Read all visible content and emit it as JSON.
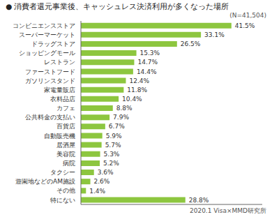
{
  "chart_data": {
    "type": "bar",
    "orientation": "horizontal",
    "title": "● 消費者還元事業後、キャッシュレス決済利用が多くなった場所",
    "annotations": [
      "(N=41,504)",
      "2020.1 Visa×MMD研究所"
    ],
    "categories": [
      "コンビニエンスストア",
      "スーパーマーケット",
      "ドラッグストア",
      "ショッピングモール",
      "レストラン",
      "ファーストフード",
      "ガソリンスタンド",
      "家電量販店",
      "衣料品店",
      "カフェ",
      "公共料金の支払い",
      "百貨店",
      "自動販売機",
      "居酒屋",
      "美容院",
      "病院",
      "タクシー",
      "遊園地などのAM施設",
      "その他",
      "特にない"
    ],
    "values": [
      41.5,
      33.1,
      26.5,
      15.3,
      14.7,
      14.4,
      12.4,
      11.8,
      10.4,
      8.8,
      7.9,
      6.7,
      5.9,
      5.7,
      5.3,
      5.2,
      3.6,
      2.6,
      1.4,
      28.8
    ],
    "value_labels": [
      "41.5%",
      "33.1%",
      "26.5%",
      "15.3%",
      "14.7%",
      "14.4%",
      "12.4%",
      "11.8%",
      "10.4%",
      "8.8%",
      "7.9%",
      "6.7%",
      "5.9%",
      "5.7%",
      "5.3%",
      "5.2%",
      "3.6%",
      "2.6%",
      "1.4%",
      "28.8%"
    ],
    "color": "#8dc63f",
    "xlim": [
      0,
      50
    ],
    "data_labels": true,
    "tick_labels": "y",
    "grid": false
  }
}
